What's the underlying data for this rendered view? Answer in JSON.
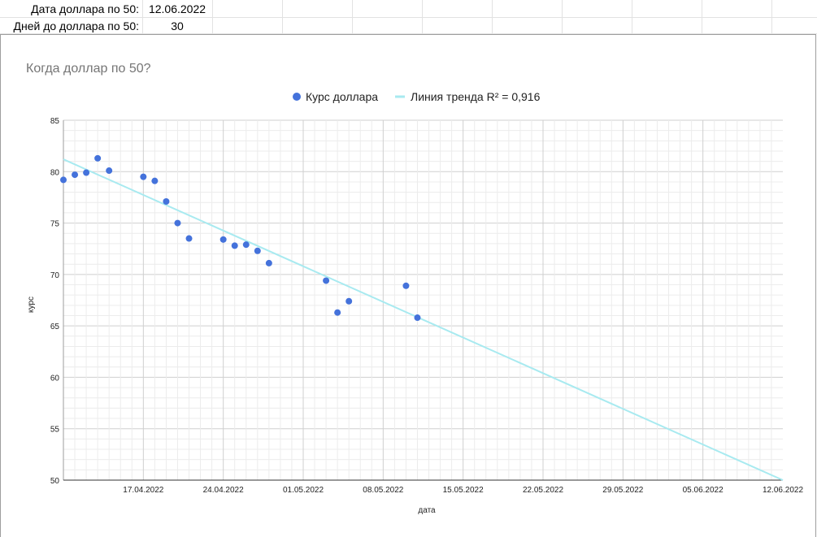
{
  "sheet": {
    "row1": {
      "label": "Дата доллара по 50:",
      "value": "12.06.2022"
    },
    "row2": {
      "label": "Дней до доллара по 50:",
      "value": "30"
    }
  },
  "chart_data": {
    "type": "scatter",
    "title": "Когда доллар по 50?",
    "xlabel": "дата",
    "ylabel": "курс",
    "ylim": [
      50,
      85
    ],
    "xlim": [
      "2022-04-10",
      "2022-06-12"
    ],
    "yticks": [
      "85",
      "80",
      "75",
      "70",
      "65",
      "60",
      "55",
      "50"
    ],
    "xticks": [
      "17.04.2022",
      "24.04.2022",
      "01.05.2022",
      "08.05.2022",
      "15.05.2022",
      "22.05.2022",
      "29.05.2022",
      "05.06.2022",
      "12.06.2022"
    ],
    "grid": true,
    "legend_position": "top",
    "series": [
      {
        "name": "Курс доллара",
        "color": "#4472db",
        "points": [
          {
            "x": "2022-04-10",
            "y": 79.2
          },
          {
            "x": "2022-04-11",
            "y": 79.7
          },
          {
            "x": "2022-04-12",
            "y": 79.9
          },
          {
            "x": "2022-04-13",
            "y": 81.3
          },
          {
            "x": "2022-04-14",
            "y": 80.1
          },
          {
            "x": "2022-04-17",
            "y": 79.5
          },
          {
            "x": "2022-04-18",
            "y": 79.1
          },
          {
            "x": "2022-04-19",
            "y": 77.1
          },
          {
            "x": "2022-04-20",
            "y": 75.0
          },
          {
            "x": "2022-04-21",
            "y": 73.5
          },
          {
            "x": "2022-04-24",
            "y": 73.4
          },
          {
            "x": "2022-04-25",
            "y": 72.8
          },
          {
            "x": "2022-04-26",
            "y": 72.9
          },
          {
            "x": "2022-04-27",
            "y": 72.3
          },
          {
            "x": "2022-04-28",
            "y": 71.1
          },
          {
            "x": "2022-05-03",
            "y": 69.4
          },
          {
            "x": "2022-05-04",
            "y": 66.3
          },
          {
            "x": "2022-05-05",
            "y": 67.4
          },
          {
            "x": "2022-05-10",
            "y": 68.9
          },
          {
            "x": "2022-05-11",
            "y": 65.8
          }
        ]
      }
    ],
    "trendline": {
      "name": "Линия тренда R² = 0,916",
      "color": "#a8eaf0",
      "start": {
        "x": "2022-04-10",
        "y": 81.2
      },
      "end": {
        "x": "2022-06-12",
        "y": 50.0
      }
    }
  }
}
